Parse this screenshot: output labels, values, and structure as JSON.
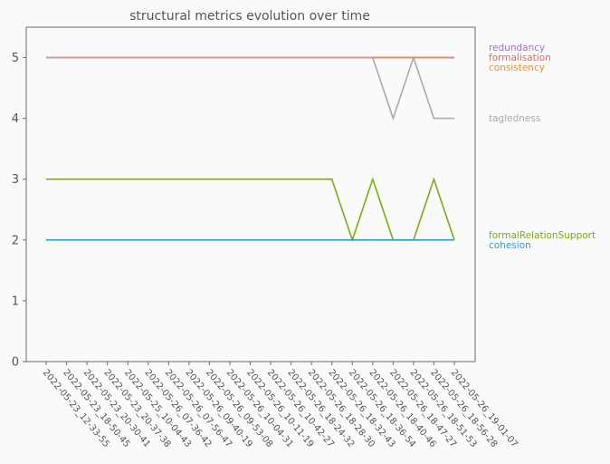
{
  "chart_data": {
    "type": "line",
    "title": "structural metrics evolution over time",
    "xlabel": "",
    "ylabel": "",
    "ylim": [
      0,
      5.5
    ],
    "yticks": [
      0,
      1,
      2,
      3,
      4,
      5
    ],
    "grid": false,
    "legend_placement": "right, labels at line ends",
    "x": [
      "2022-05-23_12-33-55",
      "2022-05-23_18-50-45",
      "2022-05-23_20-30-41",
      "2022-05-23_20-37-38",
      "2022-05-25_10-04-43",
      "2022-05-26_07-36-42",
      "2022-05-26_07-56-47",
      "2022-05-26_09-40-19",
      "2022-05-26_09-53-08",
      "2022-05-26_10-04-31",
      "2022-05-26_10-11-19",
      "2022-05-26_10-42-27",
      "2022-05-26_18-24-32",
      "2022-05-26_18-28-30",
      "2022-05-26_18-32-43",
      "2022-05-26_18-36-54",
      "2022-05-26_18-40-46",
      "2022-05-26_18-47-27",
      "2022-05-26_18-51-53",
      "2022-05-26_18-56-28",
      "2022-05-26_19-01-07"
    ],
    "series": [
      {
        "name": "redundancy",
        "color": "#9b6fce",
        "values": [
          5,
          5,
          5,
          5,
          5,
          5,
          5,
          5,
          5,
          5,
          5,
          5,
          5,
          5,
          5,
          5,
          5,
          5,
          5,
          5,
          5
        ]
      },
      {
        "name": "formalisation",
        "color": "#e06666",
        "values": [
          5,
          5,
          5,
          5,
          5,
          5,
          5,
          5,
          5,
          5,
          5,
          5,
          5,
          5,
          5,
          5,
          5,
          5,
          5,
          5,
          5
        ]
      },
      {
        "name": "consistency",
        "color": "#e69138",
        "values": [
          5,
          5,
          5,
          5,
          5,
          5,
          5,
          5,
          5,
          5,
          5,
          5,
          5,
          5,
          5,
          5,
          5,
          5,
          5,
          5,
          5
        ]
      },
      {
        "name": "tagledness",
        "color": "#aaaaaa",
        "values": [
          5,
          5,
          5,
          5,
          5,
          5,
          5,
          5,
          5,
          5,
          5,
          5,
          5,
          5,
          5,
          5,
          5,
          4,
          5,
          4,
          4
        ]
      },
      {
        "name": "formalRelationSupport",
        "color": "#7aad0c",
        "values": [
          3,
          3,
          3,
          3,
          3,
          3,
          3,
          3,
          3,
          3,
          3,
          3,
          3,
          3,
          3,
          2,
          3,
          2,
          2,
          3,
          2
        ]
      },
      {
        "name": "cohesion",
        "color": "#2c9fd6",
        "values": [
          2,
          2,
          2,
          2,
          2,
          2,
          2,
          2,
          2,
          2,
          2,
          2,
          2,
          2,
          2,
          2,
          2,
          2,
          2,
          2,
          2
        ]
      }
    ]
  }
}
